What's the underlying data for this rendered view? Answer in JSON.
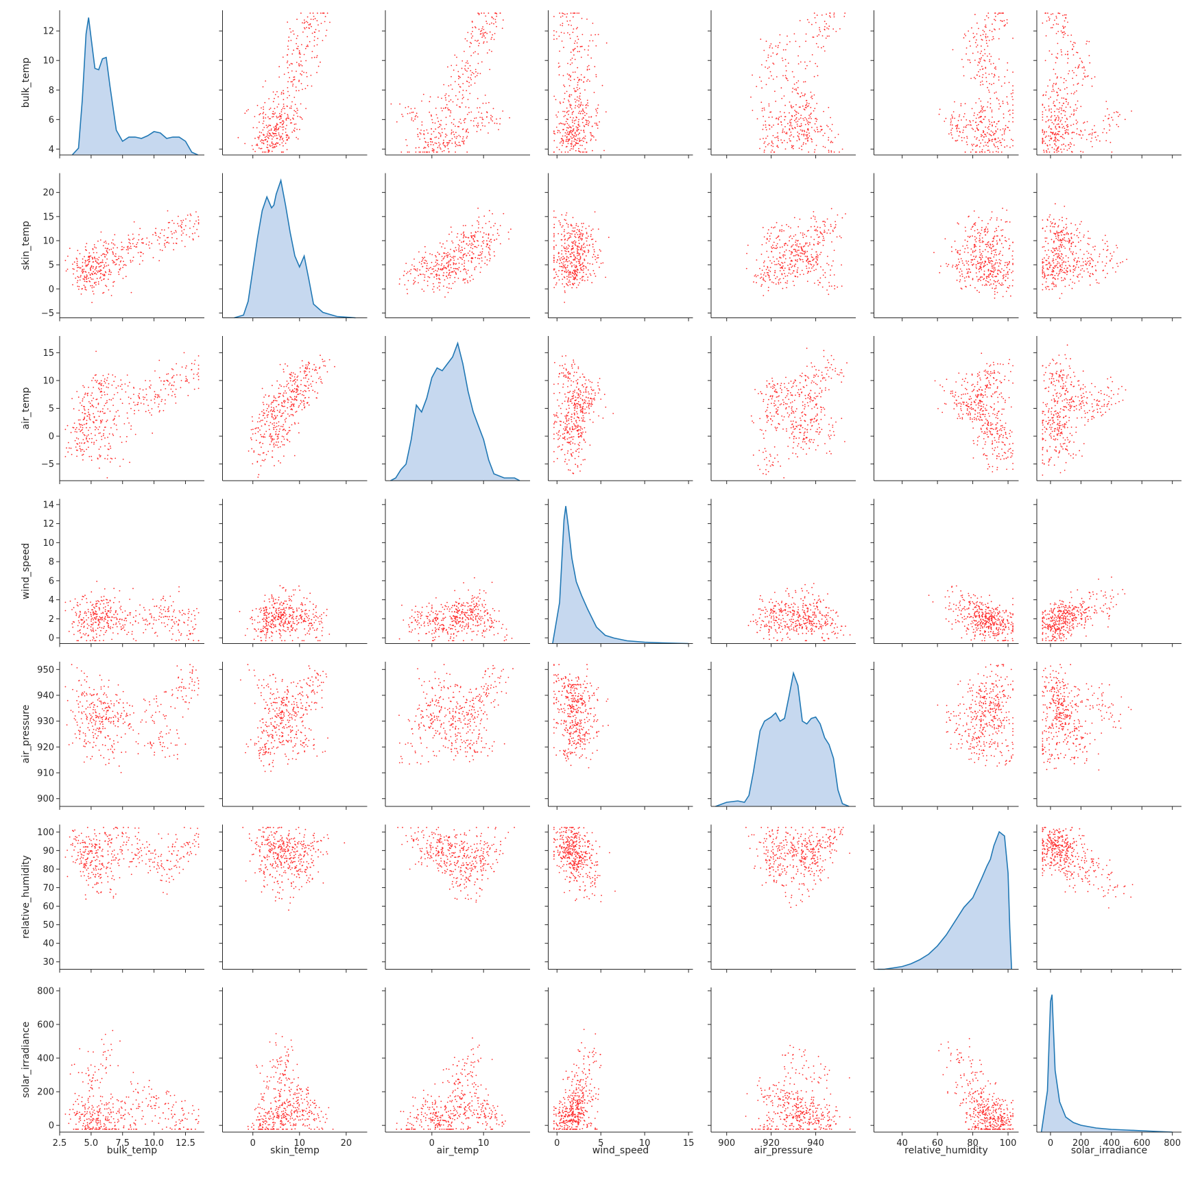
{
  "chart_data": {
    "type": "pairplot",
    "title": "",
    "variables": [
      "bulk_temp",
      "skin_temp",
      "air_temp",
      "wind_speed",
      "air_pressure",
      "relative_humidity",
      "solar_irradiance"
    ],
    "colors": {
      "scatter": "#ff2a2a",
      "kde_fill": "#aec7e8",
      "kde_line": "#1f77b4",
      "axis": "#262626"
    },
    "axes": {
      "bulk_temp": {
        "range": [
          2.5,
          14.0
        ],
        "ticks": [
          2.5,
          5.0,
          7.5,
          10.0,
          12.5
        ],
        "tick_labels": [
          "2.5",
          "5.0",
          "7.5",
          "10.0",
          "12.5"
        ],
        "yrange": [
          3.6,
          13.4
        ],
        "yticks": [
          4,
          6,
          8,
          10,
          12
        ],
        "ytick_labels": [
          "4",
          "6",
          "8",
          "10",
          "12"
        ]
      },
      "skin_temp": {
        "range": [
          -6.5,
          24.5
        ],
        "ticks": [
          0,
          10,
          20
        ],
        "tick_labels": [
          "0",
          "10",
          "20"
        ],
        "yrange": [
          -6,
          24
        ],
        "yticks": [
          -5,
          0,
          5,
          10,
          15,
          20
        ],
        "ytick_labels": [
          "−5",
          "0",
          "5",
          "10",
          "15",
          "20"
        ]
      },
      "air_temp": {
        "range": [
          -9,
          19
        ],
        "ticks": [
          0,
          10
        ],
        "tick_labels": [
          "0",
          "10"
        ],
        "yrange": [
          -8,
          18
        ],
        "yticks": [
          -5,
          0,
          5,
          10,
          15
        ],
        "ytick_labels": [
          "−5",
          "0",
          "5",
          "10",
          "15"
        ]
      },
      "wind_speed": {
        "range": [
          -1,
          15.5
        ],
        "ticks": [
          0,
          5,
          10,
          15
        ],
        "tick_labels": [
          "0",
          "5",
          "10",
          "15"
        ],
        "yrange": [
          -0.6,
          14.6
        ],
        "yticks": [
          0,
          2,
          4,
          6,
          8,
          10,
          12,
          14
        ],
        "ytick_labels": [
          "0",
          "2",
          "4",
          "6",
          "8",
          "10",
          "12",
          "14"
        ]
      },
      "air_pressure": {
        "range": [
          893,
          958
        ],
        "ticks": [
          900,
          920,
          940
        ],
        "tick_labels": [
          "900",
          "920",
          "940"
        ],
        "yrange": [
          897,
          953
        ],
        "yticks": [
          900,
          910,
          920,
          930,
          940,
          950
        ],
        "ytick_labels": [
          "900",
          "910",
          "920",
          "930",
          "940",
          "950"
        ]
      },
      "relative_humidity": {
        "range": [
          24,
          106
        ],
        "ticks": [
          40,
          60,
          80,
          100
        ],
        "tick_labels": [
          "40",
          "60",
          "80",
          "100"
        ],
        "yrange": [
          26,
          104
        ],
        "yticks": [
          30,
          40,
          50,
          60,
          70,
          80,
          90,
          100
        ],
        "ytick_labels": [
          "30",
          "40",
          "50",
          "60",
          "70",
          "80",
          "90",
          "100"
        ]
      },
      "solar_irradiance": {
        "range": [
          -90,
          860
        ],
        "ticks": [
          0,
          200,
          400,
          600,
          800
        ],
        "tick_labels": [
          "0",
          "200",
          "400",
          "600",
          "800"
        ],
        "yrange": [
          -40,
          820
        ],
        "yticks": [
          0,
          200,
          400,
          600,
          800
        ],
        "ytick_labels": [
          "0",
          "200",
          "400",
          "600",
          "800"
        ]
      }
    },
    "diagonal_kde": {
      "bulk_temp": {
        "x": [
          3.5,
          4.0,
          4.3,
          4.6,
          4.8,
          5.0,
          5.3,
          5.6,
          5.9,
          6.2,
          6.5,
          7.0,
          7.5,
          8.0,
          8.5,
          9.0,
          9.5,
          10.0,
          10.5,
          11.0,
          11.5,
          12.0,
          12.5,
          13.0,
          13.5
        ],
        "y": [
          0.0,
          0.05,
          0.4,
          0.88,
          1.0,
          0.85,
          0.63,
          0.62,
          0.7,
          0.71,
          0.5,
          0.18,
          0.1,
          0.13,
          0.13,
          0.12,
          0.14,
          0.17,
          0.16,
          0.12,
          0.13,
          0.13,
          0.1,
          0.02,
          0.0
        ]
      },
      "skin_temp": {
        "x": [
          -4,
          -2,
          -1,
          0,
          1,
          2,
          3,
          4,
          4.5,
          5,
          6,
          7,
          8,
          9,
          10,
          11,
          12,
          13,
          15,
          18,
          22
        ],
        "y": [
          0.0,
          0.02,
          0.12,
          0.35,
          0.58,
          0.78,
          0.88,
          0.8,
          0.82,
          0.9,
          1.0,
          0.82,
          0.62,
          0.45,
          0.37,
          0.45,
          0.28,
          0.1,
          0.04,
          0.01,
          0.0
        ]
      },
      "air_temp": {
        "x": [
          -8,
          -7,
          -6,
          -5,
          -4,
          -3,
          -2,
          -1,
          0,
          1,
          2,
          3,
          4,
          5,
          6,
          7,
          8,
          9,
          10,
          11,
          12,
          14,
          16,
          17
        ],
        "y": [
          0.0,
          0.02,
          0.08,
          0.12,
          0.3,
          0.55,
          0.5,
          0.6,
          0.75,
          0.82,
          0.8,
          0.85,
          0.9,
          1.0,
          0.85,
          0.65,
          0.5,
          0.4,
          0.3,
          0.15,
          0.05,
          0.02,
          0.02,
          0.0
        ]
      },
      "wind_speed": {
        "x": [
          -0.5,
          0.3,
          0.8,
          1.0,
          1.3,
          1.7,
          2.2,
          2.8,
          3.5,
          4.5,
          5.5,
          6.5,
          8,
          10,
          12,
          15
        ],
        "y": [
          0.0,
          0.3,
          0.9,
          1.0,
          0.85,
          0.62,
          0.45,
          0.35,
          0.25,
          0.12,
          0.06,
          0.04,
          0.02,
          0.01,
          0.005,
          0.0
        ]
      },
      "air_pressure": {
        "x": [
          895,
          900,
          905,
          908,
          910,
          912,
          915,
          917,
          920,
          922,
          924,
          926,
          928,
          930,
          932,
          934,
          936,
          938,
          940,
          942,
          944,
          946,
          948,
          950,
          952,
          955
        ],
        "y": [
          0.0,
          0.03,
          0.04,
          0.03,
          0.08,
          0.25,
          0.55,
          0.62,
          0.65,
          0.68,
          0.62,
          0.64,
          0.8,
          0.97,
          0.88,
          0.62,
          0.6,
          0.64,
          0.65,
          0.6,
          0.5,
          0.45,
          0.35,
          0.12,
          0.02,
          0.0
        ]
      },
      "relative_humidity": {
        "x": [
          26,
          30,
          35,
          40,
          45,
          50,
          55,
          60,
          65,
          70,
          75,
          80,
          85,
          88,
          90,
          92,
          95,
          97,
          98,
          100,
          101,
          102
        ],
        "y": [
          0.0,
          0.0,
          0.01,
          0.02,
          0.04,
          0.07,
          0.11,
          0.17,
          0.25,
          0.35,
          0.45,
          0.52,
          0.66,
          0.75,
          0.8,
          0.9,
          1.0,
          0.98,
          0.97,
          0.7,
          0.3,
          0.0
        ]
      },
      "solar_irradiance": {
        "x": [
          -60,
          -20,
          0,
          10,
          30,
          60,
          100,
          150,
          200,
          300,
          400,
          500,
          600,
          700,
          800
        ],
        "y": [
          0.0,
          0.3,
          0.95,
          1.0,
          0.45,
          0.22,
          0.11,
          0.07,
          0.05,
          0.03,
          0.02,
          0.015,
          0.01,
          0.005,
          0.0
        ]
      }
    },
    "sample_points": {
      "bulk_temp": [
        4.3,
        4.5,
        4.6,
        4.8,
        5.0,
        5.2,
        5.5,
        6.0,
        6.2,
        6.4,
        7.0,
        8.0,
        9.0,
        10.0,
        11.0,
        12.0,
        12.8
      ],
      "skin_temp": [
        2.0,
        4.0,
        3.0,
        5.0,
        6.0,
        4.0,
        5.0,
        7.0,
        8.0,
        3.0,
        6.0,
        8.0,
        9.0,
        10.0,
        11.0,
        12.0,
        13.0
      ],
      "air_temp": [
        1.0,
        -2.0,
        3.0,
        5.0,
        0.0,
        6.0,
        2.0,
        8.0,
        10.0,
        -4.0,
        2.0,
        5.0,
        7.0,
        6.0,
        9.0,
        10.0,
        12.0
      ],
      "wind_speed": [
        1.5,
        2.0,
        1.0,
        3.0,
        1.2,
        2.5,
        1.8,
        4.0,
        2.2,
        1.5,
        2.0,
        1.8,
        2.5,
        2.0,
        3.0,
        1.5,
        1.0
      ],
      "air_pressure": [
        945,
        930,
        920,
        940,
        935,
        925,
        928,
        932,
        938,
        918,
        935,
        930,
        920,
        935,
        922,
        940,
        946
      ],
      "relative_humidity": [
        95,
        90,
        85,
        80,
        92,
        75,
        88,
        70,
        85,
        98,
        90,
        95,
        88,
        85,
        80,
        90,
        95
      ],
      "solar_irradiance": [
        20,
        100,
        0,
        300,
        50,
        200,
        10,
        400,
        80,
        0,
        100,
        50,
        200,
        80,
        150,
        50,
        30
      ]
    }
  }
}
